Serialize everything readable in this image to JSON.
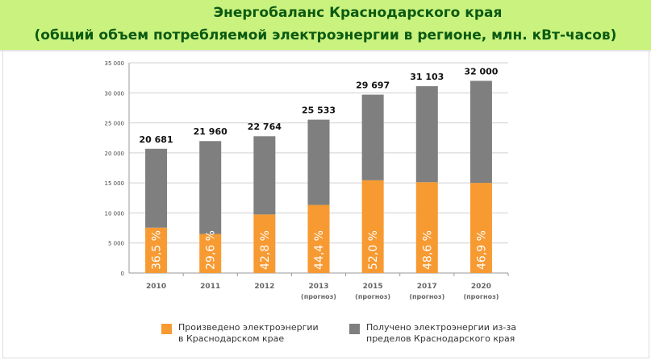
{
  "header": {
    "title": "Энергобаланс Краснодарского края",
    "subtitle": "(общий объем потребляемой электроэнергии в регионе, млн. кВт-часов)"
  },
  "chart_data": {
    "type": "bar",
    "stacked": true,
    "title": "Энергобаланс Краснодарского края",
    "subtitle": "(общий объем потребляемой электроэнергии в регионе, млн. кВт-часов)",
    "categories": [
      "2010",
      "2011",
      "2012",
      "2013",
      "2015",
      "2017",
      "2020"
    ],
    "category_notes": [
      "",
      "",
      "",
      "(прогноз)",
      "(прогноз)",
      "(прогноз)",
      "(прогноз)"
    ],
    "totals": [
      20681,
      21960,
      22764,
      25533,
      29697,
      31103,
      32000
    ],
    "total_labels": [
      "20 681",
      "21 960",
      "22 764",
      "25 533",
      "29 697",
      "31 103",
      "32 000"
    ],
    "percent_labels": [
      "36,5 %",
      "29,6 %",
      "42,8 %",
      "44,4 %",
      "52,0 %",
      "48,6 %",
      "46,9 %"
    ],
    "series": [
      {
        "name": "Произведено электроэнергии в Краснодарском крае",
        "color": "#f79a32",
        "values": [
          7549,
          6500,
          9743,
          11337,
          15442,
          15116,
          15008
        ]
      },
      {
        "name": "Получено электроэнергии из-за пределов Краснодарского края",
        "color": "#7f7f7f",
        "values": [
          13132,
          15460,
          13021,
          14196,
          14255,
          15987,
          16992
        ]
      }
    ],
    "ylim": [
      0,
      35000
    ],
    "yticks": [
      0,
      5000,
      10000,
      15000,
      20000,
      25000,
      30000,
      35000
    ],
    "ytick_labels": [
      "0",
      "5 000",
      "10 000",
      "15 000",
      "20 000",
      "25 000",
      "30 000",
      "35 000"
    ],
    "grid": true,
    "legend_position": "bottom"
  }
}
